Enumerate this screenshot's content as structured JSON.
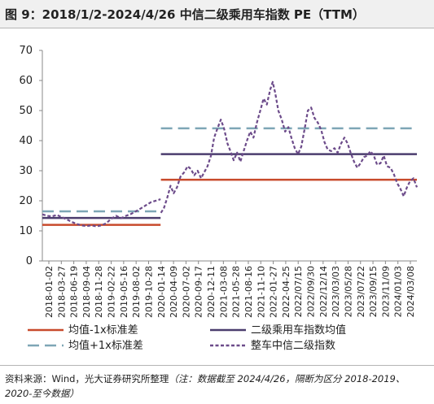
{
  "header": {
    "title": "图 9：2018/1/2-2024/4/26 中信二级乘用车指数 PE（TTM）"
  },
  "source": {
    "prefix": "资料来源：Wind，光大证券研究所整理",
    "note": "（注：数据截至 2024/4/26，隔断为区分 2018-2019、2020-至今数据）"
  },
  "colors": {
    "mean": "#4b3d6e",
    "minus_1sd": "#c84a2c",
    "plus_1sd": "#7ea6b6",
    "index": "#6c4b8a"
  },
  "chart_data": {
    "type": "line",
    "title": "",
    "xlabel": "",
    "ylabel": "",
    "ylim": [
      0,
      70
    ],
    "yticks": [
      0,
      10,
      20,
      30,
      40,
      50,
      60,
      70
    ],
    "x_start": "2018-01-02",
    "x_end": "2024-04-26",
    "xtick_labels": [
      "2018-01-02",
      "2018-03-27",
      "2018-06-19",
      "2018-09-04",
      "2018-11-28",
      "2019-02-22",
      "2019-05-16",
      "2019-08-02",
      "2019-10-28",
      "2020-01-14",
      "2020-04-09",
      "2020-07-02",
      "2020-09-17",
      "2020-12-11",
      "2021-03-08",
      "2021-05-28",
      "2021-08-16",
      "2021-11-10",
      "2022-01-27",
      "2022-04-25",
      "2022/07/15",
      "2022/09/30",
      "2022/12/14",
      "2023/03/03",
      "2023/05/28",
      "2023/07/22",
      "2023/09/15",
      "2023/11/09",
      "2024/01/03",
      "2024/03/08"
    ],
    "grid": false,
    "legend_position": "bottom",
    "segments": [
      {
        "label": "2018-2019",
        "start": "2018-01-02",
        "end": "2019-12-31"
      },
      {
        "label": "2020-至今",
        "start": "2020-01-02",
        "end": "2024-04-26"
      }
    ],
    "series": [
      {
        "name": "均值-1x标准差",
        "style": "solid",
        "values": [
          {
            "x": "2018-01-02",
            "y": 12.0
          },
          {
            "x": "2019-12-31",
            "y": 12.0
          },
          {
            "x": "2020-01-02",
            "y": 27.0
          },
          {
            "x": "2024-04-26",
            "y": 27.0
          }
        ]
      },
      {
        "name": "二级乘用车指数均值",
        "style": "solid",
        "values": [
          {
            "x": "2018-01-02",
            "y": 14.3
          },
          {
            "x": "2019-12-31",
            "y": 14.3
          },
          {
            "x": "2020-01-02",
            "y": 35.5
          },
          {
            "x": "2024-04-26",
            "y": 35.5
          }
        ]
      },
      {
        "name": "均值+1x标准差",
        "style": "dashed",
        "values": [
          {
            "x": "2018-01-02",
            "y": 16.5
          },
          {
            "x": "2019-12-31",
            "y": 16.5
          },
          {
            "x": "2020-01-02",
            "y": 44.1
          },
          {
            "x": "2024-04-26",
            "y": 44.1
          }
        ]
      },
      {
        "name": "整车中信二级指数",
        "style": "dashed",
        "values": [
          {
            "x": "2018-01-02",
            "y": 15.5
          },
          {
            "x": "2018-02-01",
            "y": 15.0
          },
          {
            "x": "2018-03-01",
            "y": 14.8
          },
          {
            "x": "2018-04-01",
            "y": 15.3
          },
          {
            "x": "2018-05-01",
            "y": 14.6
          },
          {
            "x": "2018-06-01",
            "y": 13.8
          },
          {
            "x": "2018-07-01",
            "y": 13.0
          },
          {
            "x": "2018-08-01",
            "y": 12.3
          },
          {
            "x": "2018-09-01",
            "y": 11.8
          },
          {
            "x": "2018-10-01",
            "y": 11.6
          },
          {
            "x": "2018-11-01",
            "y": 11.8
          },
          {
            "x": "2018-12-01",
            "y": 11.5
          },
          {
            "x": "2019-01-01",
            "y": 11.8
          },
          {
            "x": "2019-02-01",
            "y": 12.6
          },
          {
            "x": "2019-03-01",
            "y": 14.0
          },
          {
            "x": "2019-04-01",
            "y": 15.0
          },
          {
            "x": "2019-05-01",
            "y": 14.2
          },
          {
            "x": "2019-06-01",
            "y": 15.0
          },
          {
            "x": "2019-07-01",
            "y": 15.6
          },
          {
            "x": "2019-08-01",
            "y": 16.5
          },
          {
            "x": "2019-09-01",
            "y": 17.5
          },
          {
            "x": "2019-10-01",
            "y": 18.5
          },
          {
            "x": "2019-11-01",
            "y": 19.5
          },
          {
            "x": "2019-12-31",
            "y": 20.5
          },
          {
            "x": "2020-01-02",
            "y": 16.0
          },
          {
            "x": "2020-01-20",
            "y": 17.5
          },
          {
            "x": "2020-02-10",
            "y": 21.0
          },
          {
            "x": "2020-03-01",
            "y": 25.0
          },
          {
            "x": "2020-03-20",
            "y": 22.5
          },
          {
            "x": "2020-04-10",
            "y": 24.5
          },
          {
            "x": "2020-05-01",
            "y": 28.0
          },
          {
            "x": "2020-05-25",
            "y": 29.5
          },
          {
            "x": "2020-06-15",
            "y": 31.5
          },
          {
            "x": "2020-07-05",
            "y": 30.5
          },
          {
            "x": "2020-07-25",
            "y": 28.5
          },
          {
            "x": "2020-08-15",
            "y": 30.0
          },
          {
            "x": "2020-09-05",
            "y": 27.5
          },
          {
            "x": "2020-09-25",
            "y": 29.5
          },
          {
            "x": "2020-10-15",
            "y": 31.5
          },
          {
            "x": "2020-11-05",
            "y": 35.0
          },
          {
            "x": "2020-11-25",
            "y": 41.0
          },
          {
            "x": "2020-12-15",
            "y": 44.0
          },
          {
            "x": "2021-01-05",
            "y": 47.0
          },
          {
            "x": "2021-01-25",
            "y": 44.0
          },
          {
            "x": "2021-02-15",
            "y": 39.0
          },
          {
            "x": "2021-03-05",
            "y": 36.5
          },
          {
            "x": "2021-03-25",
            "y": 33.5
          },
          {
            "x": "2021-04-15",
            "y": 36.0
          },
          {
            "x": "2021-05-05",
            "y": 33.0
          },
          {
            "x": "2021-05-25",
            "y": 36.5
          },
          {
            "x": "2021-06-15",
            "y": 40.0
          },
          {
            "x": "2021-07-05",
            "y": 43.0
          },
          {
            "x": "2021-07-25",
            "y": 41.0
          },
          {
            "x": "2021-08-15",
            "y": 46.0
          },
          {
            "x": "2021-09-05",
            "y": 50.0
          },
          {
            "x": "2021-09-25",
            "y": 54.0
          },
          {
            "x": "2021-10-15",
            "y": 52.0
          },
          {
            "x": "2021-11-05",
            "y": 57.0
          },
          {
            "x": "2021-11-20",
            "y": 59.5
          },
          {
            "x": "2021-12-05",
            "y": 56.0
          },
          {
            "x": "2021-12-25",
            "y": 50.0
          },
          {
            "x": "2022-01-15",
            "y": 47.0
          },
          {
            "x": "2022-02-05",
            "y": 43.0
          },
          {
            "x": "2022-02-25",
            "y": 44.5
          },
          {
            "x": "2022-03-15",
            "y": 41.0
          },
          {
            "x": "2022-04-05",
            "y": 37.5
          },
          {
            "x": "2022-04-25",
            "y": 35.5
          },
          {
            "x": "2022-05-15",
            "y": 38.0
          },
          {
            "x": "2022-06-05",
            "y": 44.0
          },
          {
            "x": "2022-06-25",
            "y": 50.0
          },
          {
            "x": "2022-07-15",
            "y": 51.0
          },
          {
            "x": "2022-08-05",
            "y": 47.5
          },
          {
            "x": "2022-08-25",
            "y": 46.0
          },
          {
            "x": "2022-09-15",
            "y": 43.5
          },
          {
            "x": "2022-10-05",
            "y": 39.5
          },
          {
            "x": "2022-10-25",
            "y": 37.0
          },
          {
            "x": "2022-11-15",
            "y": 36.5
          },
          {
            "x": "2022-12-05",
            "y": 37.5
          },
          {
            "x": "2022-12-25",
            "y": 36.0
          },
          {
            "x": "2023-01-15",
            "y": 39.0
          },
          {
            "x": "2023-02-05",
            "y": 41.0
          },
          {
            "x": "2023-02-25",
            "y": 39.0
          },
          {
            "x": "2023-03-15",
            "y": 36.0
          },
          {
            "x": "2023-04-05",
            "y": 33.0
          },
          {
            "x": "2023-04-25",
            "y": 31.0
          },
          {
            "x": "2023-05-15",
            "y": 32.5
          },
          {
            "x": "2023-06-05",
            "y": 34.5
          },
          {
            "x": "2023-06-25",
            "y": 35.0
          },
          {
            "x": "2023-07-15",
            "y": 36.5
          },
          {
            "x": "2023-08-05",
            "y": 35.0
          },
          {
            "x": "2023-08-25",
            "y": 32.0
          },
          {
            "x": "2023-09-15",
            "y": 32.5
          },
          {
            "x": "2023-10-05",
            "y": 35.0
          },
          {
            "x": "2023-10-25",
            "y": 31.5
          },
          {
            "x": "2023-11-15",
            "y": 31.0
          },
          {
            "x": "2023-12-05",
            "y": 29.0
          },
          {
            "x": "2023-12-25",
            "y": 26.0
          },
          {
            "x": "2024-01-15",
            "y": 24.0
          },
          {
            "x": "2024-02-05",
            "y": 21.5
          },
          {
            "x": "2024-02-25",
            "y": 24.5
          },
          {
            "x": "2024-03-15",
            "y": 26.5
          },
          {
            "x": "2024-04-05",
            "y": 27.5
          },
          {
            "x": "2024-04-26",
            "y": 24.5
          }
        ]
      }
    ],
    "legend": [
      {
        "series": 0,
        "label": "均值-1x标准差"
      },
      {
        "series": 1,
        "label": "二级乘用车指数均值"
      },
      {
        "series": 2,
        "label": "均值+1x标准差"
      },
      {
        "series": 3,
        "label": "整车中信二级指数"
      }
    ]
  }
}
